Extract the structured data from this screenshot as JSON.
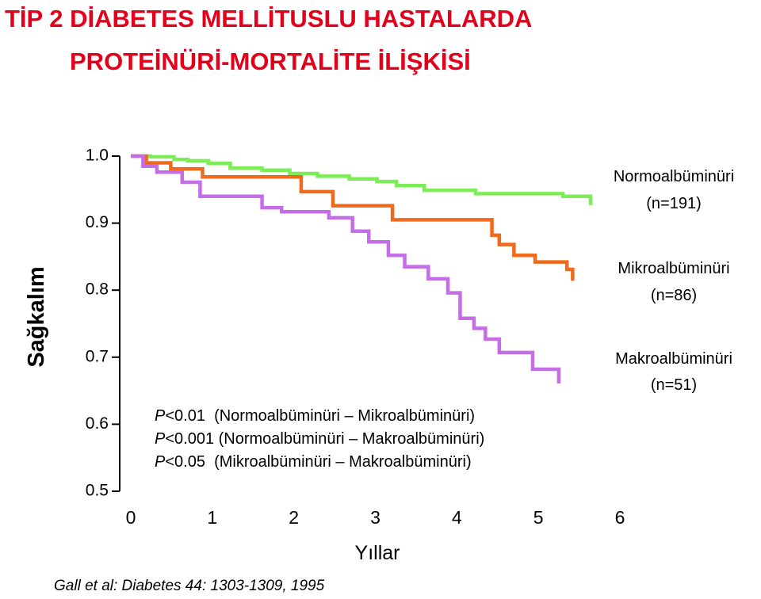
{
  "chart_data": {
    "type": "step",
    "title": [
      "TİP 2 DİABETES MELLİTUSLU HASTALARDA",
      "PROTEİNÜRİ-MORTALİTE İLİŞKİSİ"
    ],
    "ylabel": "Sağkalım",
    "xlabel": "Yıllar",
    "xlim": [
      0,
      6
    ],
    "xticks": [
      0,
      1,
      2,
      3,
      4,
      5,
      6
    ],
    "ylim": [
      0.5,
      1
    ],
    "yticks": [
      {
        "value": 1,
        "label": "1.0"
      },
      0.9,
      0.8,
      0.7,
      0.6,
      0.5
    ],
    "series": [
      {
        "name": "Normoalbüminüri",
        "n_label": "(n=191)",
        "color": "#7ded57",
        "x": [
          0,
          0.24,
          0.53,
          0.7,
          0.95,
          1.22,
          1.61,
          1.95,
          2.29,
          2.68,
          3.02,
          3.26,
          3.6,
          4.23,
          5.3,
          5.64
        ],
        "values": [
          1.0,
          0.999,
          0.995,
          0.993,
          0.989,
          0.982,
          0.979,
          0.974,
          0.97,
          0.966,
          0.962,
          0.956,
          0.949,
          0.944,
          0.94,
          0.934
        ]
      },
      {
        "name": "Mikroalbüminüri",
        "n_label": "(n=86)",
        "color": "#f06a1e",
        "x": [
          0,
          0.19,
          0.49,
          0.88,
          2.09,
          2.48,
          3.21,
          4.43,
          4.52,
          4.7,
          4.96,
          5.35,
          5.42
        ],
        "values": [
          1.0,
          0.99,
          0.981,
          0.969,
          0.947,
          0.926,
          0.905,
          0.882,
          0.868,
          0.852,
          0.842,
          0.831,
          0.821
        ]
      },
      {
        "name": "Makroalbüminüri",
        "n_label": "(n=51)",
        "color": "#c56de6",
        "x": [
          0,
          0.15,
          0.32,
          0.63,
          0.85,
          1.61,
          1.85,
          2.43,
          2.72,
          2.92,
          3.16,
          3.36,
          3.65,
          3.89,
          4.04,
          4.21,
          4.35,
          4.52,
          4.93,
          5.25
        ],
        "values": [
          1.0,
          0.985,
          0.976,
          0.961,
          0.94,
          0.923,
          0.917,
          0.908,
          0.888,
          0.872,
          0.852,
          0.835,
          0.817,
          0.796,
          0.758,
          0.743,
          0.727,
          0.707,
          0.682,
          0.668
        ]
      }
    ],
    "annotations": [
      {
        "p": "P",
        "text": "<0.01  (Normoalbüminüri – Mikroalbüminüri)"
      },
      {
        "p": "P",
        "text": "<0.001 (Normoalbüminüri – Makroalbüminüri)"
      },
      {
        "p": "P",
        "text": "<0.05  (Mikroalbüminüri – Makroalbüminüri)"
      }
    ],
    "source": "Gall et al: Diabetes 44: 1303-1309, 1995"
  }
}
